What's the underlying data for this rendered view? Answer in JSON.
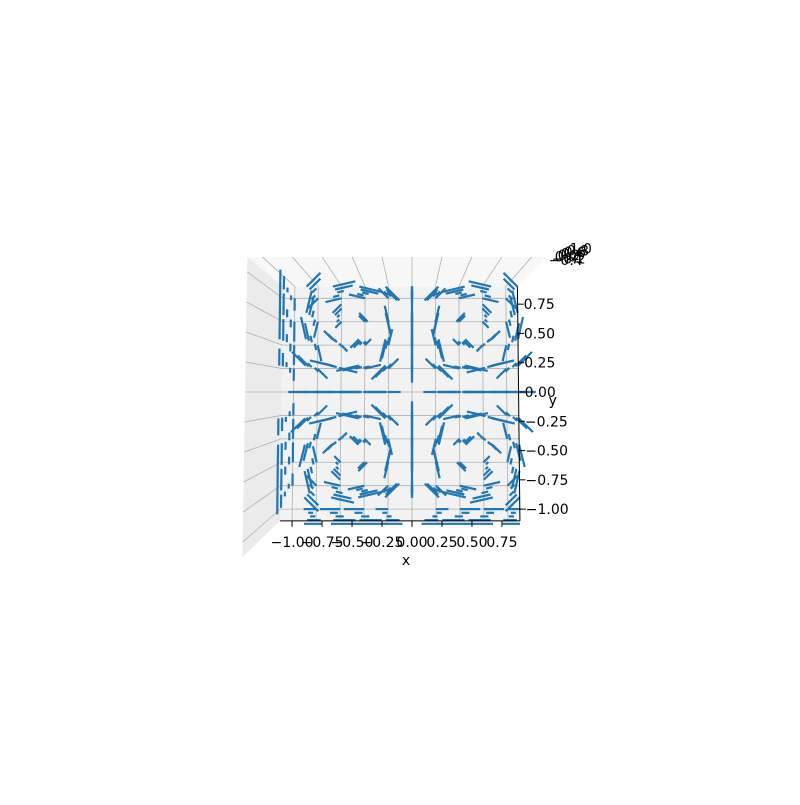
{
  "chart_data": {
    "type": "quiver3d",
    "view": "top-down",
    "xlabel": "x",
    "ylabel": "y",
    "x_ticks": [
      -1.0,
      -0.75,
      -0.5,
      -0.25,
      0.0,
      0.25,
      0.5,
      0.75
    ],
    "x_tick_labels": [
      "−1.00",
      "−0.75",
      "−0.50",
      "−0.25",
      "0.00",
      "0.25",
      "0.50",
      "0.75"
    ],
    "y_ticks": [
      0.75,
      0.5,
      0.25,
      0.0,
      -0.25,
      -0.5,
      -0.75,
      -1.0
    ],
    "y_tick_labels": [
      "0.75",
      "0.50",
      "0.25",
      "0.00",
      "−0.25",
      "−0.50",
      "−0.75",
      "−1.00"
    ],
    "z_tick_labels_overlapped": [
      "−0.4",
      "−0.2",
      "0.0",
      "0.2",
      "0.4",
      "0.6",
      "0.8",
      "1.0"
    ],
    "xlim": [
      -1.1,
      0.9
    ],
    "ylim": [
      -1.1,
      0.9
    ],
    "grid": true,
    "grid_x": [
      -1.0,
      -0.8,
      -0.6,
      -0.4,
      -0.2,
      0.0,
      0.2,
      0.4,
      0.6,
      0.8
    ],
    "grid_y": [
      -1.0,
      -0.8,
      -0.6,
      -0.4,
      -0.2,
      0.0,
      0.2,
      0.4,
      0.6,
      0.8
    ],
    "z_levels": [
      -0.8,
      -0.6,
      -0.4,
      -0.2,
      0.0
    ],
    "arrow_length": 0.1,
    "field": {
      "u": "sin(pi x) cos(pi y) cos(pi z)",
      "v": "-cos(pi x) sin(pi y) cos(pi z)"
    },
    "color": "#1f77b4",
    "pane_color": "#f2f2f2"
  }
}
